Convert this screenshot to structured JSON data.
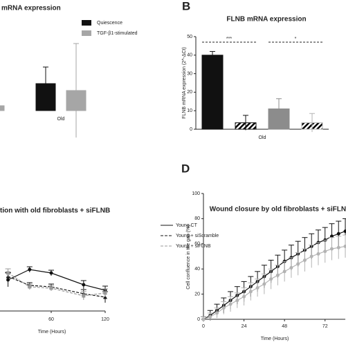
{
  "chart_data": [
    {
      "type": "bar",
      "title": "mRNA expression",
      "categories": [
        null,
        "Old"
      ],
      "ylim": [
        0,
        110
      ],
      "series": [
        {
          "name": "Quiescence",
          "color": "#111111",
          "values": [
            null,
            39
          ],
          "errors": [
            null,
            24
          ]
        },
        {
          "name": "TGF-β1-stimulated",
          "color": "#a6a6a6",
          "values": [
            7,
            29
          ],
          "errors": [
            null,
            68
          ]
        }
      ]
    },
    {
      "type": "bar",
      "panel_label": "B",
      "title": "FLNB mRNA expression",
      "y_label": "FLNB mRNA expression (2^-ΔCt)",
      "categories": [
        "Old"
      ],
      "ylim": [
        0,
        50
      ],
      "yticks": [
        0,
        10,
        20,
        30,
        40,
        50
      ],
      "significance": [
        "***",
        "*"
      ],
      "series": [
        {
          "color": "#111111",
          "hatch": false,
          "values": [
            40
          ],
          "errors": [
            2
          ]
        },
        {
          "color": "#111111",
          "hatch": true,
          "values": [
            3.5
          ],
          "errors": [
            4
          ]
        },
        {
          "color": "#8c8c8c",
          "hatch": false,
          "values": [
            11
          ],
          "errors": [
            5.5
          ]
        },
        {
          "color": "#b3b3b3",
          "hatch": true,
          "values": [
            3.5
          ],
          "errors": [
            5
          ]
        }
      ]
    },
    {
      "type": "line",
      "title": "tion with old fibroblasts + siFLNB",
      "x_label": "Time (Hours)",
      "x": [
        12,
        36,
        60,
        96,
        120
      ],
      "xlim": [
        0,
        120
      ],
      "xticks": [
        0,
        60,
        120
      ],
      "ylim": [
        0,
        100
      ],
      "series": [
        {
          "name": "Young CT",
          "color": "#111111",
          "marker": "circle",
          "dash": false,
          "values": [
            45,
            60,
            55,
            38,
            30
          ],
          "errors": [
            10,
            4,
            4,
            6,
            6
          ]
        },
        {
          "name": "Young + siScramble",
          "color": "#111111",
          "marker": "triangle",
          "dash": true,
          "values": [
            50,
            37,
            35,
            25,
            20
          ],
          "errors": [
            6,
            4,
            4,
            6,
            8
          ]
        },
        {
          "name": "Young + siFLNB",
          "color": "#999999",
          "marker": "square",
          "dash": true,
          "values": [
            55,
            35,
            33,
            22,
            26
          ],
          "errors": [
            6,
            4,
            4,
            6,
            6
          ]
        }
      ]
    },
    {
      "type": "line",
      "panel_label": "D",
      "title": "Wound closure by old fibroblasts + siFLNB",
      "x_label": "Time (Hours)",
      "y_label": "Cell confluence in the gap (%)",
      "x": [
        0,
        4,
        8,
        12,
        16,
        20,
        24,
        28,
        32,
        36,
        40,
        44,
        48,
        52,
        56,
        60,
        64,
        68,
        72,
        76,
        80,
        84
      ],
      "xlim": [
        0,
        84
      ],
      "xticks": [
        0,
        24,
        48,
        72
      ],
      "ylim": [
        0,
        100
      ],
      "yticks": [
        0,
        20,
        40,
        60,
        80,
        100
      ],
      "series": [
        {
          "color": "#111111",
          "marker": "circle",
          "dash": false,
          "values": [
            0,
            3,
            7,
            11,
            15,
            19,
            22,
            26,
            30,
            34,
            38,
            42,
            46,
            49,
            52,
            55,
            58,
            61,
            63,
            66,
            68,
            70
          ],
          "errors": [
            2,
            4,
            5,
            6,
            7,
            7,
            8,
            8,
            8,
            9,
            9,
            9,
            9,
            10,
            10,
            10,
            10,
            10,
            10,
            10,
            10,
            10
          ]
        },
        {
          "color": "#b3b3b3",
          "marker": "circle",
          "dash": false,
          "values": [
            0,
            2,
            5,
            9,
            12,
            15,
            18,
            22,
            25,
            28,
            32,
            35,
            38,
            41,
            44,
            47,
            50,
            52,
            54,
            56,
            57,
            58
          ],
          "errors": [
            2,
            3,
            4,
            5,
            6,
            6,
            7,
            7,
            7,
            8,
            8,
            8,
            8,
            8,
            9,
            9,
            9,
            9,
            9,
            9,
            9,
            9
          ]
        }
      ]
    }
  ]
}
